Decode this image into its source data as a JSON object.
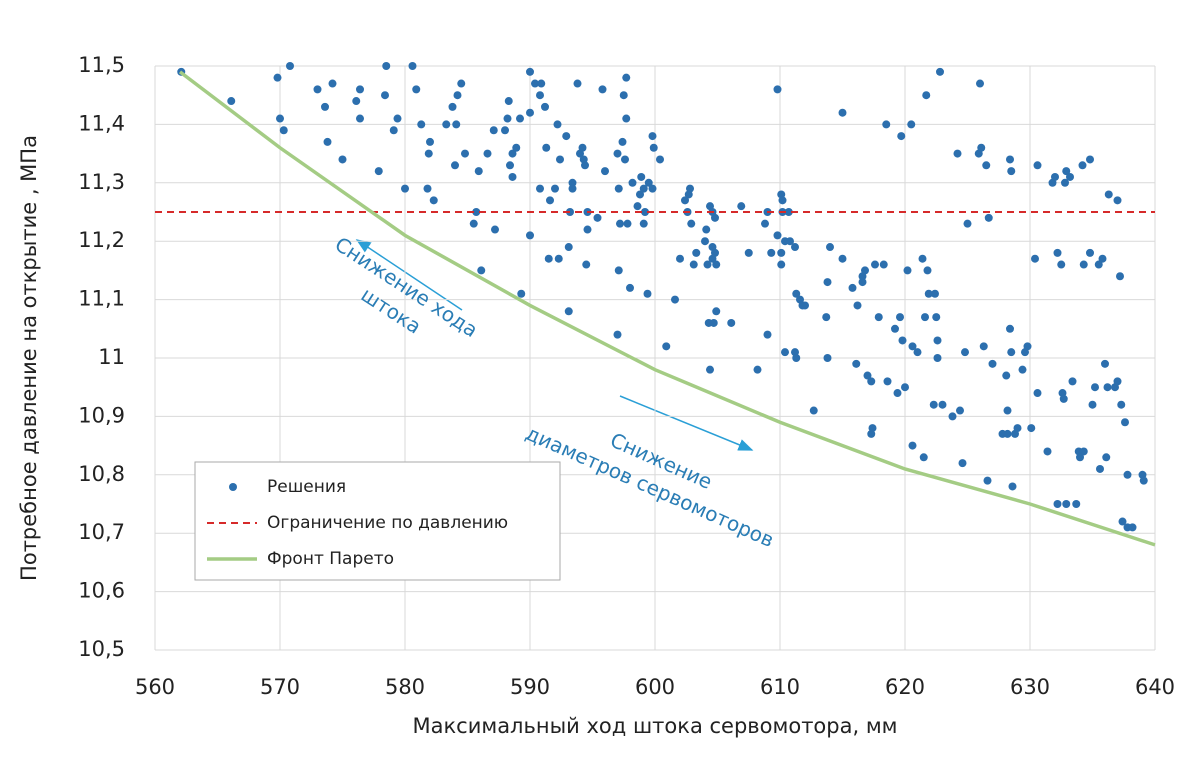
{
  "chart_data": {
    "type": "scatter",
    "xlabel": "Максимальный ход штока сервомотора, мм",
    "ylabel": "Потребное давление на открытие , МПа",
    "xlim": [
      560,
      640
    ],
    "xticks": [
      560,
      570,
      580,
      590,
      600,
      610,
      620,
      630,
      640
    ],
    "ylim": [
      10.5,
      11.5
    ],
    "yticks": [
      {
        "value": 10.5,
        "label": "10,5"
      },
      {
        "value": 10.6,
        "label": "10,6"
      },
      {
        "value": 10.7,
        "label": "10,7"
      },
      {
        "value": 10.8,
        "label": "10,8"
      },
      {
        "value": 10.9,
        "label": "10,9"
      },
      11,
      {
        "value": 11.1,
        "label": "11,1"
      },
      {
        "value": 11.2,
        "label": "11,2"
      },
      {
        "value": 11.3,
        "label": "11,3"
      },
      {
        "value": 11.4,
        "label": "11,4"
      },
      {
        "value": 11.5,
        "label": "11,5"
      }
    ],
    "grid": true,
    "legend": "lower left",
    "annotations": [
      {
        "lines": [
          "Снижение хода",
          "штока"
        ],
        "color": "#2a7db5"
      },
      {
        "lines": [
          "Снижение",
          "диаметров сервомоторов"
        ],
        "color": "#2a7db5"
      }
    ],
    "series": [
      {
        "name": "Решения",
        "type": "scatter",
        "color": "#2c6fae",
        "x": [
          562.1,
          566.1,
          569.8,
          570.8,
          570.0,
          570.3,
          573.0,
          574.2,
          573.6,
          573.8,
          575.0,
          576.4,
          576.1,
          576.4,
          577.9,
          578.5,
          578.4,
          579.4,
          579.1,
          580.0,
          580.6,
          580.9,
          581.3,
          582.0,
          581.9,
          581.8,
          582.3,
          583.3,
          584.1,
          583.8,
          584.2,
          584.5,
          584.0,
          584.8,
          585.7,
          585.5,
          585.9,
          586.1,
          586.6,
          587.2,
          587.1,
          588.3,
          588.2,
          588.0,
          588.4,
          588.6,
          588.6,
          588.9,
          589.2,
          589.3,
          590.0,
          590.0,
          590.4,
          590.9,
          590.8,
          591.2,
          590.0,
          591.3,
          590.8,
          591.6,
          592.0,
          592.2,
          592.4,
          591.5,
          592.3,
          592.9,
          593.1,
          593.2,
          593.4,
          593.1,
          593.4,
          593.8,
          594.0,
          594.4,
          594.6,
          594.5,
          594.2,
          594.3,
          594.6,
          595.4,
          595.8,
          596.0,
          597.0,
          597.1,
          597.2,
          597.7,
          597.5,
          597.7,
          597.4,
          597.6,
          597.1,
          597.0,
          597.8,
          598.2,
          598.0,
          598.6,
          598.8,
          598.9,
          599.1,
          599.2,
          599.1,
          599.4,
          599.5,
          599.8,
          599.9,
          599.8,
          600.4,
          600.9,
          601.6,
          602.0,
          602.4,
          602.7,
          602.8,
          602.6,
          602.9,
          603.1,
          603.3,
          604.1,
          604.0,
          604.2,
          604.6,
          604.4,
          604.6,
          604.8,
          604.6,
          604.9,
          604.8,
          604.3,
          604.7,
          604.9,
          604.4,
          606.1,
          606.9,
          607.5,
          608.2,
          609.0,
          608.8,
          609.0,
          609.3,
          609.8,
          609.8,
          610.1,
          610.2,
          610.2,
          610.4,
          610.1,
          610.1,
          610.7,
          610.8,
          611.2,
          611.3,
          611.6,
          611.8,
          612.0,
          610.4,
          611.2,
          611.3,
          612.7,
          613.7,
          613.8,
          614.0,
          613.8,
          615.0,
          615.0,
          615.8,
          616.2,
          616.1,
          616.6,
          616.6,
          616.8,
          617.0,
          617.3,
          617.3,
          617.4,
          617.6,
          617.9,
          618.3,
          618.5,
          618.6,
          619.2,
          619.4,
          619.7,
          619.6,
          620.0,
          619.8,
          620.2,
          620.5,
          620.6,
          620.6,
          621.0,
          621.4,
          621.6,
          621.7,
          621.5,
          621.8,
          621.9,
          622.4,
          622.5,
          622.6,
          622.3,
          622.8,
          622.6,
          623.0,
          623.8,
          624.2,
          624.4,
          624.6,
          624.8,
          625.0,
          625.9,
          626.0,
          626.1,
          626.3,
          626.5,
          626.6,
          626.7,
          627.0,
          627.8,
          628.1,
          628.2,
          628.2,
          628.4,
          628.5,
          628.4,
          628.5,
          628.6,
          628.8,
          629.0,
          629.4,
          629.6,
          629.8,
          630.1,
          630.4,
          630.6,
          630.6,
          631.4,
          631.8,
          632.0,
          632.2,
          632.2,
          632.5,
          632.6,
          632.7,
          632.8,
          632.9,
          632.9,
          633.2,
          633.4,
          633.7,
          633.9,
          634.0,
          634.2,
          634.3,
          634.3,
          634.8,
          634.8,
          635.0,
          635.2,
          635.5,
          635.6,
          635.8,
          636.0,
          636.1,
          636.2,
          636.3,
          636.8,
          637.0,
          637.0,
          637.2,
          637.3,
          637.4,
          637.6,
          637.8,
          638.2,
          637.8,
          639.0,
          639.1
        ],
        "values": [
          11.49,
          11.44,
          11.48,
          11.5,
          11.41,
          11.39,
          11.46,
          11.47,
          11.43,
          11.37,
          11.34,
          11.46,
          11.44,
          11.41,
          11.32,
          11.5,
          11.45,
          11.41,
          11.39,
          11.29,
          11.5,
          11.46,
          11.4,
          11.37,
          11.35,
          11.29,
          11.27,
          11.4,
          11.4,
          11.43,
          11.45,
          11.47,
          11.33,
          11.35,
          11.25,
          11.23,
          11.32,
          11.15,
          11.35,
          11.22,
          11.39,
          11.44,
          11.41,
          11.39,
          11.33,
          11.31,
          11.35,
          11.36,
          11.41,
          11.11,
          11.42,
          11.49,
          11.47,
          11.47,
          11.45,
          11.43,
          11.21,
          11.36,
          11.29,
          11.27,
          11.29,
          11.4,
          11.34,
          11.17,
          11.17,
          11.38,
          11.19,
          11.25,
          11.3,
          11.08,
          11.29,
          11.47,
          11.35,
          11.33,
          11.25,
          11.16,
          11.36,
          11.34,
          11.22,
          11.24,
          11.46,
          11.32,
          11.35,
          11.15,
          11.23,
          11.48,
          11.45,
          11.41,
          11.37,
          11.34,
          11.29,
          11.04,
          11.23,
          11.3,
          11.12,
          11.26,
          11.28,
          11.31,
          11.29,
          11.25,
          11.23,
          11.11,
          11.3,
          11.38,
          11.36,
          11.29,
          11.34,
          11.02,
          11.1,
          11.17,
          11.27,
          11.28,
          11.29,
          11.25,
          11.23,
          11.16,
          11.18,
          11.22,
          11.2,
          11.16,
          11.25,
          11.26,
          11.17,
          11.24,
          11.19,
          11.16,
          11.18,
          11.06,
          11.06,
          11.08,
          10.98,
          11.06,
          11.26,
          11.18,
          10.98,
          11.25,
          11.23,
          11.04,
          11.18,
          11.46,
          11.21,
          11.28,
          11.27,
          11.25,
          11.2,
          11.18,
          11.16,
          11.25,
          11.2,
          11.19,
          11.11,
          11.1,
          11.09,
          11.09,
          11.01,
          11.01,
          11.0,
          10.91,
          11.07,
          11.13,
          11.19,
          11.0,
          11.42,
          11.17,
          11.12,
          11.09,
          10.99,
          11.13,
          11.14,
          11.15,
          10.97,
          10.96,
          10.87,
          10.88,
          11.16,
          11.07,
          11.16,
          11.4,
          10.96,
          11.05,
          10.94,
          11.38,
          11.07,
          10.95,
          11.03,
          11.15,
          11.4,
          11.02,
          10.85,
          11.01,
          11.17,
          11.07,
          11.45,
          10.83,
          11.15,
          11.11,
          11.11,
          11.07,
          11.03,
          10.92,
          11.49,
          11.0,
          10.92,
          10.9,
          11.35,
          10.91,
          10.82,
          11.01,
          11.23,
          11.35,
          11.47,
          11.36,
          11.02,
          11.33,
          10.79,
          11.24,
          10.99,
          10.87,
          10.97,
          10.91,
          10.87,
          11.34,
          11.32,
          11.05,
          11.01,
          10.78,
          10.87,
          10.88,
          10.98,
          11.01,
          11.02,
          10.88,
          11.17,
          11.33,
          10.94,
          10.84,
          11.3,
          11.31,
          11.18,
          10.75,
          11.16,
          10.94,
          10.93,
          11.3,
          11.32,
          10.75,
          11.31,
          10.96,
          10.75,
          10.84,
          10.83,
          11.33,
          11.16,
          10.84,
          11.34,
          11.18,
          10.92,
          10.95,
          11.16,
          10.81,
          11.17,
          10.99,
          10.83,
          10.95,
          11.28,
          10.95,
          11.27,
          10.96,
          11.14,
          10.92,
          10.72,
          10.89,
          10.71,
          10.71,
          10.8,
          10.8,
          10.79
        ]
      },
      {
        "name": "Ограничение по давлению",
        "type": "line",
        "dashed": true,
        "color": "#d62a2a",
        "x": [
          560,
          640
        ],
        "values": [
          11.25,
          11.25
        ]
      },
      {
        "name": "Фронт Парето",
        "type": "line",
        "dashed": false,
        "color": "#a4cc84",
        "x": [
          562,
          570,
          580,
          590,
          600,
          610,
          620,
          630,
          640
        ],
        "values": [
          11.49,
          11.36,
          11.21,
          11.09,
          10.98,
          10.89,
          10.81,
          10.75,
          10.68
        ]
      }
    ]
  }
}
